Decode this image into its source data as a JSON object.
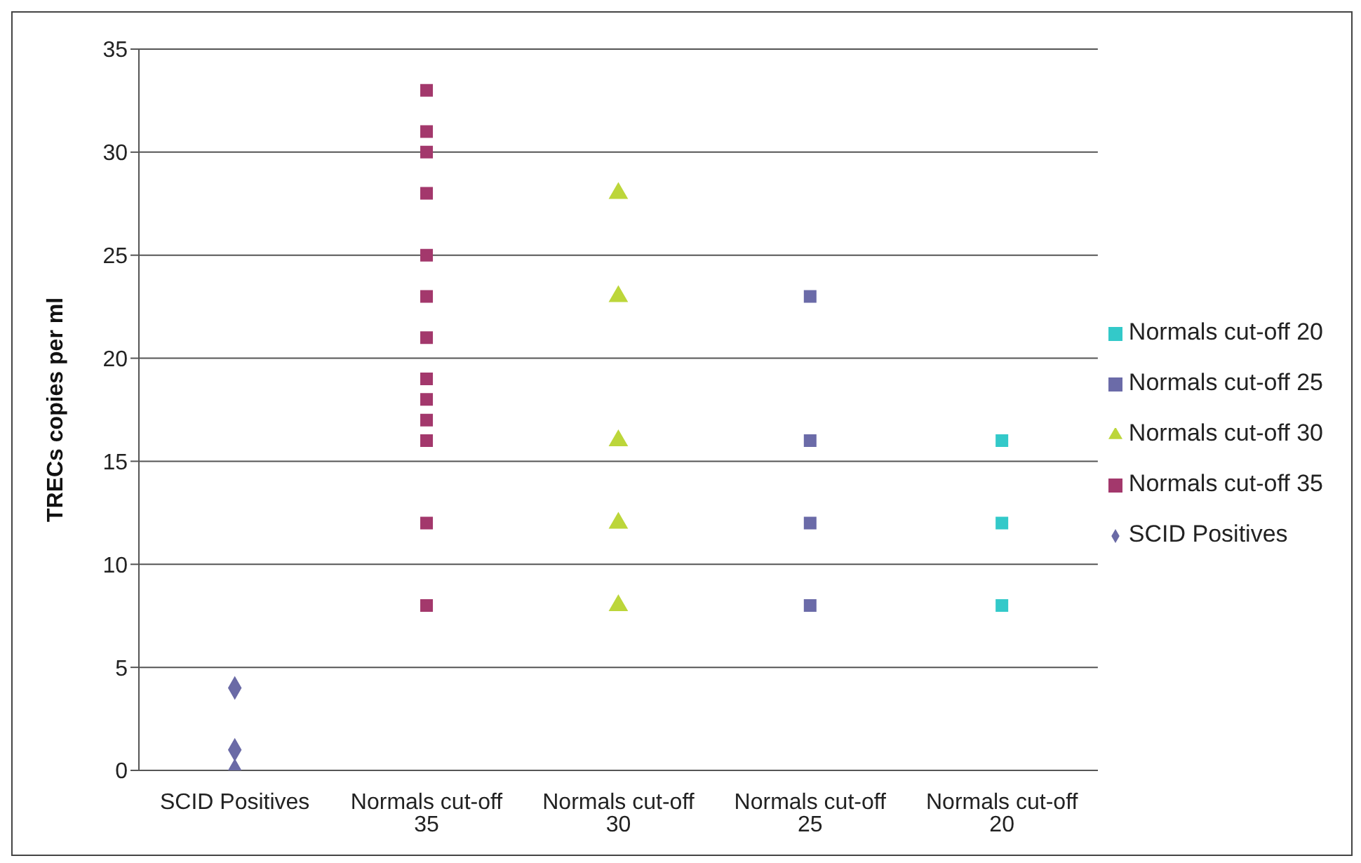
{
  "chart_data": {
    "type": "scatter",
    "ylabel": "TRECs copies per ml",
    "categories": [
      "SCID Positives",
      "Normals cut-off 35",
      "Normals cut-off 30",
      "Normals cut-off 25",
      "Normals cut-off 20"
    ],
    "ylim": [
      0,
      35
    ],
    "yticks": [
      0,
      5,
      10,
      15,
      20,
      25,
      30,
      35
    ],
    "grid": "y",
    "legend": "right",
    "series": [
      {
        "name": "SCID Positives",
        "color": "#6a6aa6",
        "marker": "diamond",
        "x": [
          "SCID Positives",
          "SCID Positives",
          "SCID Positives"
        ],
        "values": [
          4,
          1,
          0
        ]
      },
      {
        "name": "Normals cut-off 35",
        "color": "#a3386c",
        "marker": "square",
        "x": [
          "Normals cut-off 35",
          "Normals cut-off 35",
          "Normals cut-off 35",
          "Normals cut-off 35",
          "Normals cut-off 35",
          "Normals cut-off 35",
          "Normals cut-off 35",
          "Normals cut-off 35",
          "Normals cut-off 35",
          "Normals cut-off 35",
          "Normals cut-off 35",
          "Normals cut-off 35",
          "Normals cut-off 35"
        ],
        "values": [
          33,
          31,
          30,
          28,
          25,
          23,
          21,
          19,
          18,
          17,
          16,
          12,
          8
        ]
      },
      {
        "name": "Normals cut-off 30",
        "color": "#bcd63a",
        "marker": "triangle",
        "x": [
          "Normals cut-off 30",
          "Normals cut-off 30",
          "Normals cut-off 30",
          "Normals cut-off 30",
          "Normals cut-off 30"
        ],
        "values": [
          28,
          23,
          16,
          12,
          8
        ]
      },
      {
        "name": "Normals cut-off 25",
        "color": "#6b6ba8",
        "marker": "square",
        "x": [
          "Normals cut-off 25",
          "Normals cut-off 25",
          "Normals cut-off 25",
          "Normals cut-off 25"
        ],
        "values": [
          23,
          16,
          12,
          8
        ]
      },
      {
        "name": "Normals cut-off 20",
        "color": "#33c9c9",
        "marker": "square",
        "x": [
          "Normals cut-off 20",
          "Normals cut-off 20",
          "Normals cut-off 20"
        ],
        "values": [
          16,
          12,
          8
        ]
      }
    ]
  }
}
